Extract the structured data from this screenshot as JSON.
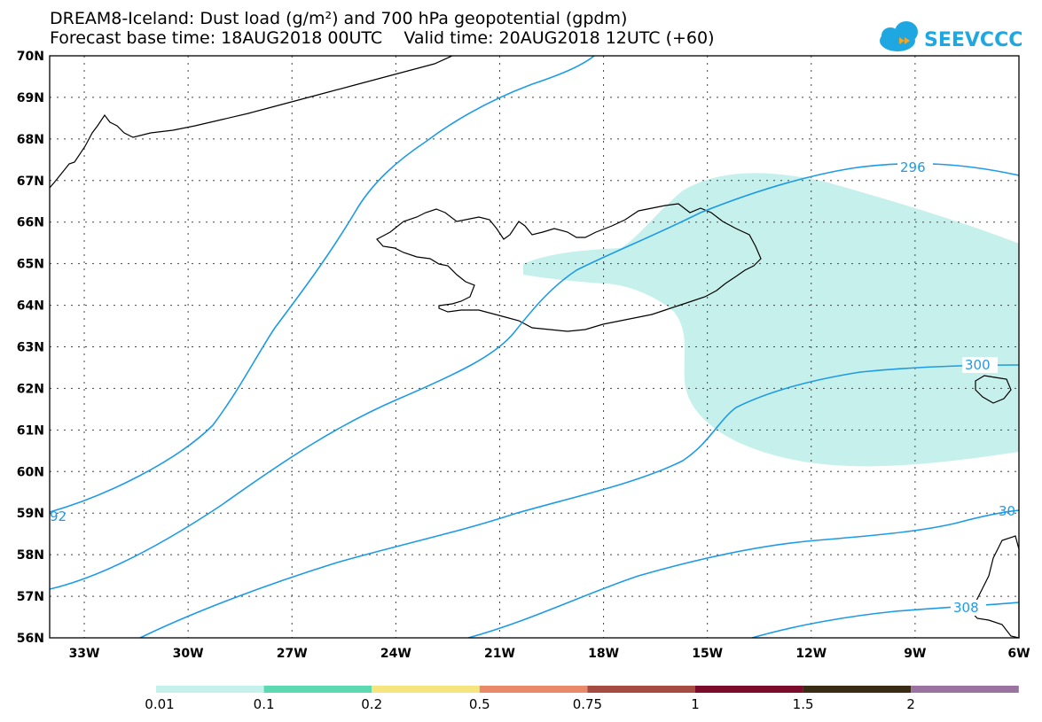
{
  "header": {
    "title_line1": "DREAM8-Iceland: Dust load (g/m²) and 700 hPa geopotential (gpdm)",
    "title_line2": "Forecast base time: 18AUG2018 00UTC    Valid time: 20AUG2018 12UTC (+60)"
  },
  "logo": {
    "text": "SEEVCCC",
    "color": "#1ea7e1",
    "accent": "#f5a623"
  },
  "map": {
    "lat_labels": [
      "70N",
      "69N",
      "68N",
      "67N",
      "66N",
      "65N",
      "64N",
      "63N",
      "62N",
      "61N",
      "60N",
      "59N",
      "58N",
      "57N",
      "56N"
    ],
    "lon_labels": [
      "33W",
      "30W",
      "27W",
      "24W",
      "21W",
      "18W",
      "15W",
      "12W",
      "9W",
      "6W"
    ],
    "contour_labels": [
      "296",
      "300",
      "92",
      "30",
      "308"
    ],
    "contour_color": "#1e9be6",
    "dust_color": "#c6f0ec"
  },
  "colorbar": {
    "ticks": [
      "0.01",
      "0.1",
      "0.2",
      "0.5",
      "0.75",
      "1",
      "1.5",
      "2"
    ],
    "colors": [
      "#c6f0ec",
      "#5cd9b0",
      "#f6e57e",
      "#e8896a",
      "#a54b42",
      "#7a0b2a",
      "#3a2b14",
      "#9a73a0"
    ]
  }
}
